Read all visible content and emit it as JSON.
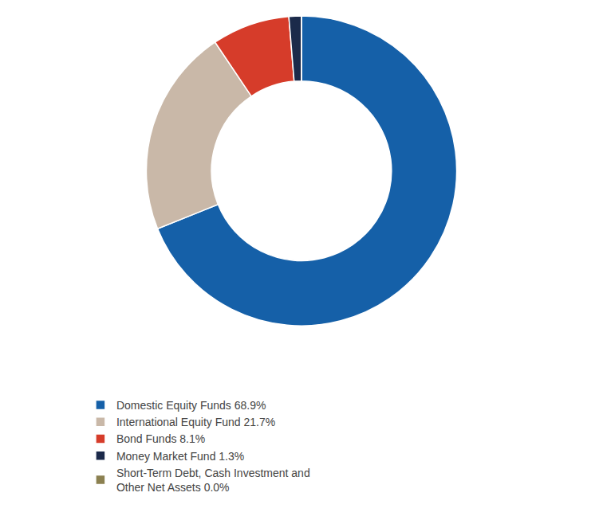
{
  "chart_data": {
    "type": "pie",
    "categories": [
      "Domestic Equity Funds 68.9%",
      "International Equity Fund 21.7%",
      "Bond Funds 8.1%",
      "Money Market Fund 1.3%",
      "Short-Term Debt, Cash Investment and\nOther Net Assets 0.0%"
    ],
    "values": [
      68.9,
      21.7,
      8.1,
      1.3,
      0.0
    ],
    "colors": [
      "#1560a8",
      "#c9b8a8",
      "#d63c2a",
      "#1b2a4a",
      "#8b8050"
    ],
    "legend": "lower left"
  }
}
